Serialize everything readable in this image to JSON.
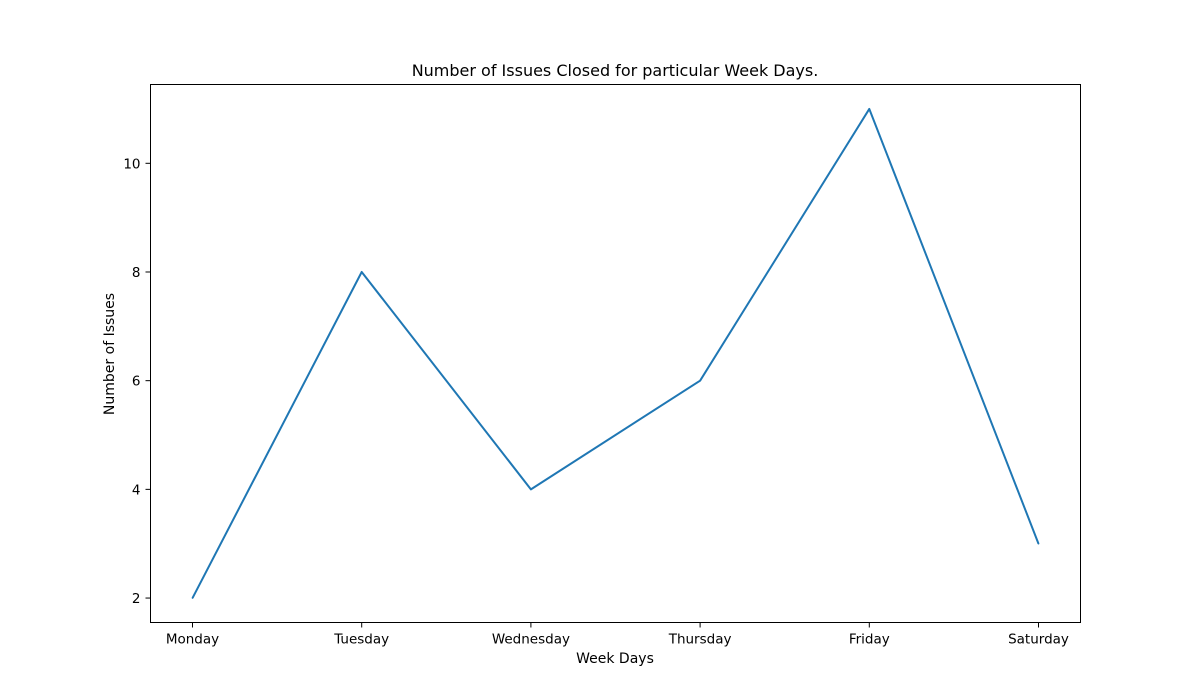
{
  "chart_data": {
    "type": "line",
    "title": "Number of Issues Closed for particular Week Days.",
    "xlabel": "Week Days",
    "ylabel": "Number of Issues",
    "categories": [
      "Monday",
      "Tuesday",
      "Wednesday",
      "Thursday",
      "Friday",
      "Saturday"
    ],
    "series": [
      {
        "values": [
          2,
          8,
          4,
          6,
          11,
          3
        ],
        "color": "#1f77b4"
      }
    ],
    "yticks": [
      "2",
      "4",
      "6",
      "8",
      "10"
    ],
    "ylim": [
      1.55,
      11.45
    ],
    "grid": false,
    "legend": "none"
  }
}
